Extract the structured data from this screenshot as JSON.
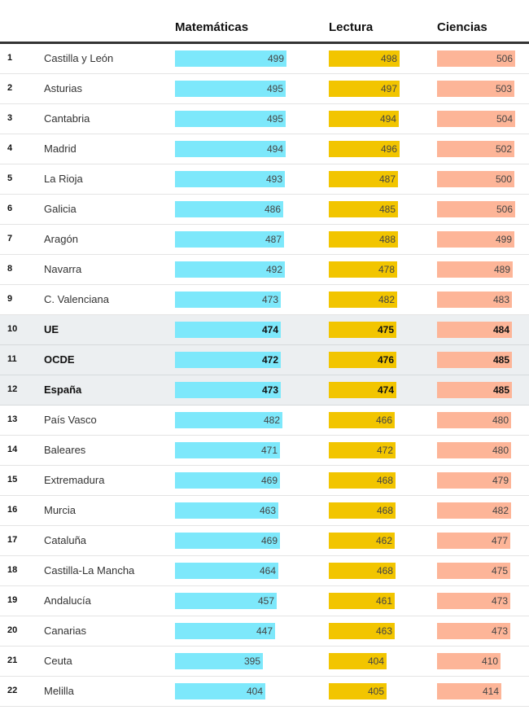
{
  "chart_data": {
    "type": "table",
    "title": "",
    "columns": [
      "",
      "",
      "Matemáticas",
      "Lectura",
      "Ciencias"
    ],
    "series_colors": {
      "Matemáticas": "#7de8fb",
      "Lectura": "#f2c500",
      "Ciencias": "#fdb598"
    },
    "highlight_color": "#eceff1",
    "rows": [
      {
        "rank": "1",
        "name": "Castilla y León",
        "math": 499,
        "read": 498,
        "sci": 506,
        "highlight": false
      },
      {
        "rank": "2",
        "name": "Asturias",
        "math": 495,
        "read": 497,
        "sci": 503,
        "highlight": false
      },
      {
        "rank": "3",
        "name": "Cantabria",
        "math": 495,
        "read": 494,
        "sci": 504,
        "highlight": false
      },
      {
        "rank": "4",
        "name": "Madrid",
        "math": 494,
        "read": 496,
        "sci": 502,
        "highlight": false
      },
      {
        "rank": "5",
        "name": "La Rioja",
        "math": 493,
        "read": 487,
        "sci": 500,
        "highlight": false
      },
      {
        "rank": "6",
        "name": "Galicia",
        "math": 486,
        "read": 485,
        "sci": 506,
        "highlight": false
      },
      {
        "rank": "7",
        "name": "Aragón",
        "math": 487,
        "read": 488,
        "sci": 499,
        "highlight": false
      },
      {
        "rank": "8",
        "name": "Navarra",
        "math": 492,
        "read": 478,
        "sci": 489,
        "highlight": false
      },
      {
        "rank": "9",
        "name": "C. Valenciana",
        "math": 473,
        "read": 482,
        "sci": 483,
        "highlight": false
      },
      {
        "rank": "10",
        "name": "UE",
        "math": 474,
        "read": 475,
        "sci": 484,
        "highlight": true
      },
      {
        "rank": "11",
        "name": "OCDE",
        "math": 472,
        "read": 476,
        "sci": 485,
        "highlight": true
      },
      {
        "rank": "12",
        "name": "España",
        "math": 473,
        "read": 474,
        "sci": 485,
        "highlight": true
      },
      {
        "rank": "13",
        "name": "País Vasco",
        "math": 482,
        "read": 466,
        "sci": 480,
        "highlight": false
      },
      {
        "rank": "14",
        "name": "Baleares",
        "math": 471,
        "read": 472,
        "sci": 480,
        "highlight": false
      },
      {
        "rank": "15",
        "name": "Extremadura",
        "math": 469,
        "read": 468,
        "sci": 479,
        "highlight": false
      },
      {
        "rank": "16",
        "name": "Murcia",
        "math": 463,
        "read": 468,
        "sci": 482,
        "highlight": false
      },
      {
        "rank": "17",
        "name": "Cataluña",
        "math": 469,
        "read": 462,
        "sci": 477,
        "highlight": false
      },
      {
        "rank": "18",
        "name": "Castilla-La Mancha",
        "math": 464,
        "read": 468,
        "sci": 475,
        "highlight": false
      },
      {
        "rank": "19",
        "name": "Andalucía",
        "math": 457,
        "read": 461,
        "sci": 473,
        "highlight": false
      },
      {
        "rank": "20",
        "name": "Canarias",
        "math": 447,
        "read": 463,
        "sci": 473,
        "highlight": false
      },
      {
        "rank": "21",
        "name": "Ceuta",
        "math": 395,
        "read": 404,
        "sci": 410,
        "highlight": false
      },
      {
        "rank": "22",
        "name": "Melilla",
        "math": 404,
        "read": 405,
        "sci": 414,
        "highlight": false
      }
    ]
  },
  "header": {
    "math": "Matemáticas",
    "read": "Lectura",
    "sci": "Ciencias"
  }
}
